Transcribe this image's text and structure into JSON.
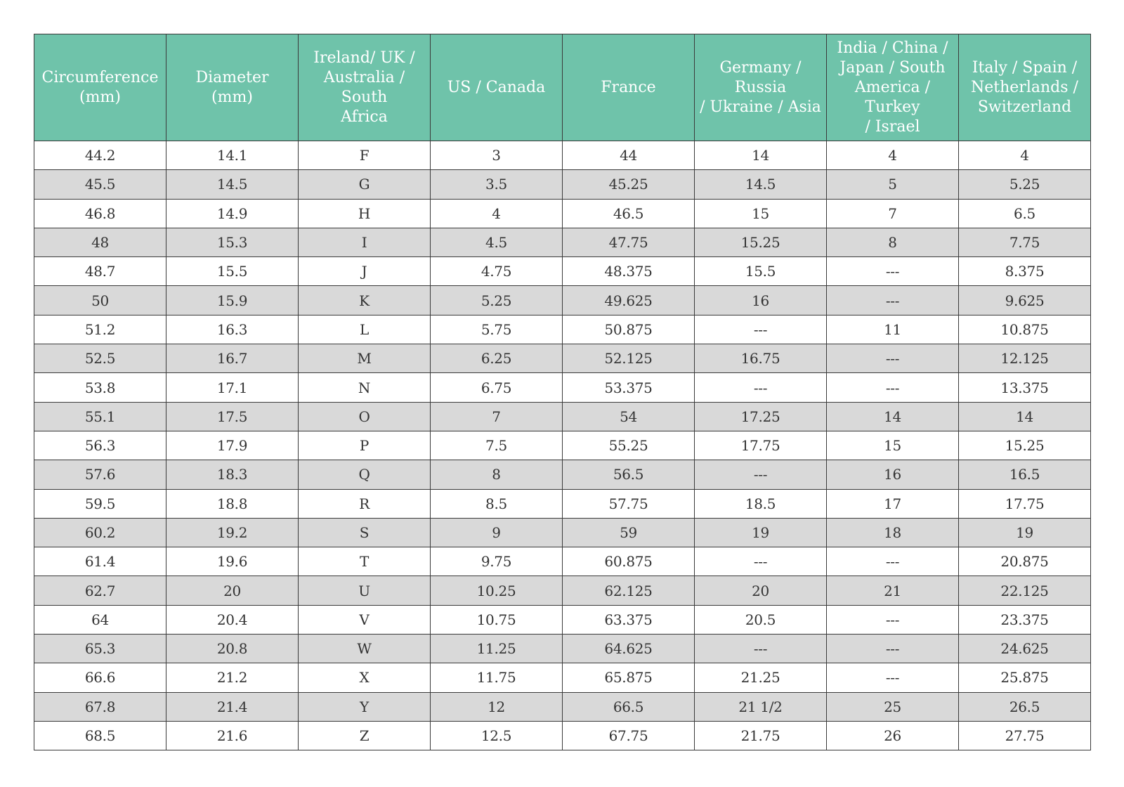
{
  "colors": {
    "header_bg": "#6fc3aa",
    "header_text": "#ffffff",
    "stripe_row": "#d9d9d9",
    "border": "#3a3a3a"
  },
  "table": {
    "headers": [
      "Circumference\n(mm)",
      "Diameter\n(mm)",
      "Ireland/ UK /\nAustralia / South\nAfrica",
      "US / Canada",
      "France",
      "Germany / Russia\n/ Ukraine / Asia",
      "India / China /\nJapan / South\nAmerica / Turkey\n/ Israel",
      "Italy / Spain /\nNetherlands /\nSwitzerland"
    ],
    "rows": [
      [
        "44.2",
        "14.1",
        "F",
        "3",
        "44",
        "14",
        "4",
        "4"
      ],
      [
        "45.5",
        "14.5",
        "G",
        "3.5",
        "45.25",
        "14.5",
        "5",
        "5.25"
      ],
      [
        "46.8",
        "14.9",
        "H",
        "4",
        "46.5",
        "15",
        "7",
        "6.5"
      ],
      [
        "48",
        "15.3",
        "I",
        "4.5",
        "47.75",
        "15.25",
        "8",
        "7.75"
      ],
      [
        "48.7",
        "15.5",
        "J",
        "4.75",
        "48.375",
        "15.5",
        "---",
        "8.375"
      ],
      [
        "50",
        "15.9",
        "K",
        "5.25",
        "49.625",
        "16",
        "---",
        "9.625"
      ],
      [
        "51.2",
        "16.3",
        "L",
        "5.75",
        "50.875",
        "---",
        "11",
        "10.875"
      ],
      [
        "52.5",
        "16.7",
        "M",
        "6.25",
        "52.125",
        "16.75",
        "---",
        "12.125"
      ],
      [
        "53.8",
        "17.1",
        "N",
        "6.75",
        "53.375",
        "---",
        "---",
        "13.375"
      ],
      [
        "55.1",
        "17.5",
        "O",
        "7",
        "54",
        "17.25",
        "14",
        "14"
      ],
      [
        "56.3",
        "17.9",
        "P",
        "7.5",
        "55.25",
        "17.75",
        "15",
        "15.25"
      ],
      [
        "57.6",
        "18.3",
        "Q",
        "8",
        "56.5",
        "---",
        "16",
        "16.5"
      ],
      [
        "59.5",
        "18.8",
        "R",
        "8.5",
        "57.75",
        "18.5",
        "17",
        "17.75"
      ],
      [
        "60.2",
        "19.2",
        "S",
        "9",
        "59",
        "19",
        "18",
        "19"
      ],
      [
        "61.4",
        "19.6",
        "T",
        "9.75",
        "60.875",
        "---",
        "---",
        "20.875"
      ],
      [
        "62.7",
        "20",
        "U",
        "10.25",
        "62.125",
        "20",
        "21",
        "22.125"
      ],
      [
        "64",
        "20.4",
        "V",
        "10.75",
        "63.375",
        "20.5",
        "---",
        "23.375"
      ],
      [
        "65.3",
        "20.8",
        "W",
        "11.25",
        "64.625",
        "---",
        "---",
        "24.625"
      ],
      [
        "66.6",
        "21.2",
        "X",
        "11.75",
        "65.875",
        "21.25",
        "---",
        "25.875"
      ],
      [
        "67.8",
        "21.4",
        "Y",
        "12",
        "66.5",
        "21 1/2",
        "25",
        "26.5"
      ],
      [
        "68.5",
        "21.6",
        "Z",
        "12.5",
        "67.75",
        "21.75",
        "26",
        "27.75"
      ]
    ]
  }
}
